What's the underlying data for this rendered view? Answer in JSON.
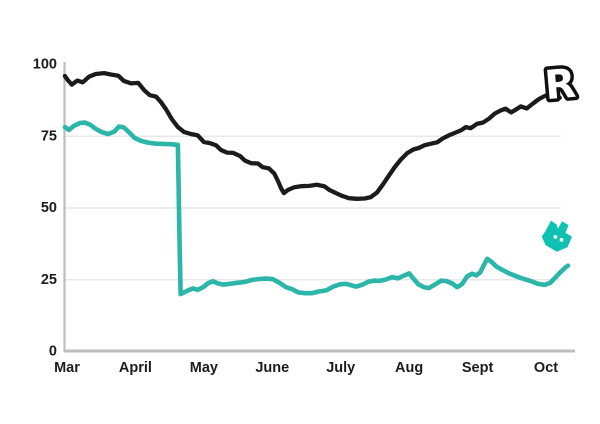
{
  "chart_data": {
    "type": "line",
    "title": "",
    "xlabel": "",
    "ylabel": "",
    "x_axis": {
      "tick_labels": [
        "Mar",
        "April",
        "May",
        "June",
        "July",
        "Aug",
        "Sept",
        "Oct"
      ],
      "range_months": [
        -0.05,
        7.45
      ]
    },
    "y_axis": {
      "tick_labels": [
        "0",
        "25",
        "50",
        "75",
        "100"
      ],
      "ticks": [
        0,
        25,
        50,
        75,
        100
      ],
      "range": [
        0,
        100
      ],
      "gridline_values": [
        25,
        50,
        75
      ]
    },
    "grid": "horizontal-light",
    "legend_position": "none (brand logos mark line ends)",
    "series": [
      {
        "name": "Revolut",
        "color": "#1b1b1b",
        "line_width": 4.3,
        "points": [
          [
            -0.03,
            96
          ],
          [
            0.01,
            94.6
          ],
          [
            0.07,
            93
          ],
          [
            0.15,
            94.4
          ],
          [
            0.23,
            93.8
          ],
          [
            0.32,
            95.7
          ],
          [
            0.42,
            96.7
          ],
          [
            0.54,
            97
          ],
          [
            0.64,
            96.5
          ],
          [
            0.75,
            96.1
          ],
          [
            0.83,
            94.3
          ],
          [
            0.94,
            93.4
          ],
          [
            1.04,
            93.6
          ],
          [
            1.13,
            91
          ],
          [
            1.21,
            89.3
          ],
          [
            1.3,
            88.8
          ],
          [
            1.37,
            87
          ],
          [
            1.45,
            84.3
          ],
          [
            1.53,
            81
          ],
          [
            1.62,
            78.2
          ],
          [
            1.71,
            76.5
          ],
          [
            1.81,
            75.8
          ],
          [
            1.91,
            75.3
          ],
          [
            2.0,
            73
          ],
          [
            2.09,
            72.6
          ],
          [
            2.18,
            71.8
          ],
          [
            2.25,
            70.2
          ],
          [
            2.34,
            69.3
          ],
          [
            2.43,
            69.2
          ],
          [
            2.53,
            68.1
          ],
          [
            2.6,
            66.5
          ],
          [
            2.69,
            65.6
          ],
          [
            2.79,
            65.5
          ],
          [
            2.86,
            64.2
          ],
          [
            2.95,
            63.8
          ],
          [
            3.03,
            62
          ],
          [
            3.08,
            59.5
          ],
          [
            3.13,
            56.8
          ],
          [
            3.17,
            55.2
          ],
          [
            3.23,
            56.3
          ],
          [
            3.32,
            57.2
          ],
          [
            3.42,
            57.6
          ],
          [
            3.54,
            57.7
          ],
          [
            3.65,
            58.1
          ],
          [
            3.76,
            57.6
          ],
          [
            3.84,
            56.2
          ],
          [
            3.93,
            55.2
          ],
          [
            4.02,
            54.2
          ],
          [
            4.12,
            53.4
          ],
          [
            4.24,
            53.2
          ],
          [
            4.35,
            53.3
          ],
          [
            4.44,
            53.8
          ],
          [
            4.53,
            55.4
          ],
          [
            4.62,
            58.3
          ],
          [
            4.71,
            61.5
          ],
          [
            4.79,
            64.3
          ],
          [
            4.88,
            66.9
          ],
          [
            4.97,
            69.1
          ],
          [
            5.06,
            70.4
          ],
          [
            5.14,
            70.9
          ],
          [
            5.23,
            71.9
          ],
          [
            5.32,
            72.4
          ],
          [
            5.41,
            72.9
          ],
          [
            5.49,
            74.2
          ],
          [
            5.58,
            75.3
          ],
          [
            5.67,
            76.2
          ],
          [
            5.76,
            77.1
          ],
          [
            5.83,
            78.2
          ],
          [
            5.9,
            77.8
          ],
          [
            5.99,
            79.3
          ],
          [
            6.08,
            79.8
          ],
          [
            6.17,
            81.2
          ],
          [
            6.25,
            82.9
          ],
          [
            6.34,
            84
          ],
          [
            6.41,
            84.6
          ],
          [
            6.49,
            83.3
          ],
          [
            6.56,
            84.3
          ],
          [
            6.63,
            85.4
          ],
          [
            6.72,
            84.7
          ],
          [
            6.81,
            86.4
          ],
          [
            6.9,
            88
          ],
          [
            6.98,
            89
          ],
          [
            7.07,
            89.6
          ],
          [
            7.14,
            89.1
          ],
          [
            7.2,
            88.4
          ]
        ]
      },
      {
        "name": "Deliveroo",
        "color": "#2bb6a9",
        "line_width": 4.6,
        "points": [
          [
            -0.03,
            78.2
          ],
          [
            0.03,
            77.2
          ],
          [
            0.1,
            78.6
          ],
          [
            0.19,
            79.6
          ],
          [
            0.26,
            79.8
          ],
          [
            0.34,
            79
          ],
          [
            0.42,
            77.6
          ],
          [
            0.51,
            76.4
          ],
          [
            0.6,
            75.8
          ],
          [
            0.69,
            76.6
          ],
          [
            0.76,
            78.4
          ],
          [
            0.83,
            78.1
          ],
          [
            0.91,
            76.3
          ],
          [
            0.99,
            74.4
          ],
          [
            1.08,
            73.4
          ],
          [
            1.18,
            72.8
          ],
          [
            1.3,
            72.4
          ],
          [
            1.43,
            72.3
          ],
          [
            1.53,
            72.2
          ],
          [
            1.62,
            72
          ],
          [
            1.64,
            45
          ],
          [
            1.66,
            20
          ],
          [
            1.71,
            20.6
          ],
          [
            1.78,
            21.4
          ],
          [
            1.84,
            22
          ],
          [
            1.91,
            21.5
          ],
          [
            1.99,
            22.4
          ],
          [
            2.06,
            23.8
          ],
          [
            2.13,
            24.5
          ],
          [
            2.21,
            23.7
          ],
          [
            2.29,
            23.3
          ],
          [
            2.38,
            23.6
          ],
          [
            2.48,
            23.9
          ],
          [
            2.59,
            24.2
          ],
          [
            2.7,
            24.9
          ],
          [
            2.82,
            25.3
          ],
          [
            2.92,
            25.4
          ],
          [
            3.01,
            25.2
          ],
          [
            3.1,
            24
          ],
          [
            3.2,
            22.4
          ],
          [
            3.29,
            21.7
          ],
          [
            3.38,
            20.6
          ],
          [
            3.48,
            20.3
          ],
          [
            3.58,
            20.3
          ],
          [
            3.68,
            20.9
          ],
          [
            3.79,
            21.3
          ],
          [
            3.89,
            22.6
          ],
          [
            3.99,
            23.4
          ],
          [
            4.08,
            23.6
          ],
          [
            4.15,
            23.1
          ],
          [
            4.22,
            22.6
          ],
          [
            4.31,
            23.2
          ],
          [
            4.4,
            24.3
          ],
          [
            4.49,
            24.7
          ],
          [
            4.57,
            24.6
          ],
          [
            4.66,
            25.1
          ],
          [
            4.75,
            25.9
          ],
          [
            4.84,
            25.5
          ],
          [
            4.92,
            26.4
          ],
          [
            5.0,
            27.2
          ],
          [
            5.07,
            25.2
          ],
          [
            5.14,
            23.3
          ],
          [
            5.22,
            22.4
          ],
          [
            5.29,
            22.1
          ],
          [
            5.38,
            23.4
          ],
          [
            5.47,
            24.7
          ],
          [
            5.55,
            24.5
          ],
          [
            5.63,
            23.7
          ],
          [
            5.7,
            22.4
          ],
          [
            5.77,
            23.4
          ],
          [
            5.85,
            26.2
          ],
          [
            5.92,
            27.1
          ],
          [
            5.98,
            26.5
          ],
          [
            6.04,
            27.6
          ],
          [
            6.09,
            30
          ],
          [
            6.14,
            32.3
          ],
          [
            6.2,
            31.3
          ],
          [
            6.27,
            29.7
          ],
          [
            6.34,
            28.7
          ],
          [
            6.47,
            27.1
          ],
          [
            6.62,
            25.7
          ],
          [
            6.77,
            24.6
          ],
          [
            6.88,
            23.6
          ],
          [
            6.98,
            23.2
          ],
          [
            7.06,
            23.9
          ],
          [
            7.13,
            25.6
          ],
          [
            7.2,
            27.4
          ],
          [
            7.28,
            29.2
          ],
          [
            7.32,
            29.9
          ]
        ]
      }
    ],
    "axis_style": {
      "spine_color": "#bdbdbd",
      "grid_color": "#e8e8e8",
      "label_color": "#1c1c1c"
    }
  },
  "logos": {
    "revolut": {
      "label": "R",
      "fill": "#ffffff",
      "outline": "#101010"
    },
    "deliveroo": {
      "color": "#0fc1b2",
      "eye_color": "#ffffff"
    }
  }
}
